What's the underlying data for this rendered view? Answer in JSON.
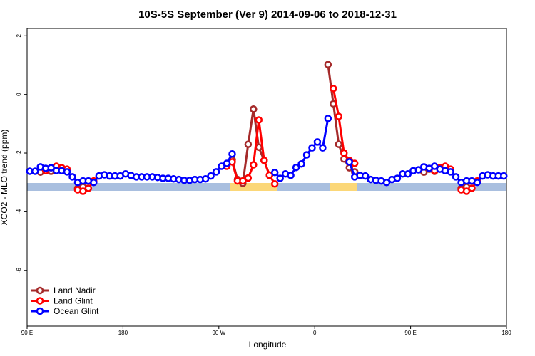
{
  "chart_data": {
    "type": "line",
    "title": "10S-5S September (Ver 9)   2014-09-06 to 2018-12-31",
    "x_label": "Longitude",
    "y_label": "XCO2 - MLO trend (ppm)",
    "x": [
      92.5,
      97.5,
      102.5,
      107.5,
      112.5,
      117.5,
      122.5,
      127.5,
      132.5,
      137.5,
      142.5,
      147.5,
      152.5,
      157.5,
      162.5,
      167.5,
      172.5,
      177.5,
      182.5,
      187.5,
      192.5,
      197.5,
      202.5,
      207.5,
      212.5,
      217.5,
      222.5,
      227.5,
      232.5,
      237.5,
      242.5,
      247.5,
      252.5,
      257.5,
      262.5,
      267.5,
      272.5,
      277.5,
      282.5,
      287.5,
      292.5,
      297.5,
      302.5,
      307.5,
      312.5,
      317.5,
      322.5,
      327.5,
      332.5,
      337.5,
      342.5,
      347.5,
      352.5,
      357.5,
      362.5,
      367.5,
      372.5,
      377.5,
      382.5,
      387.5,
      392.5,
      397.5,
      402.5,
      407.5,
      412.5,
      417.5,
      422.5,
      427.5,
      432.5,
      437.5,
      442.5,
      447.5,
      452.5,
      457.5,
      462.5,
      467.5,
      472.5,
      477.5,
      482.5,
      487.5,
      492.5,
      497.5,
      502.5,
      507.5,
      512.5,
      517.5,
      522.5,
      527.5,
      532.5,
      537.5
    ],
    "xlim": [
      90,
      540
    ],
    "xticks": [
      {
        "value": 90,
        "label": "90 E"
      },
      {
        "value": 180,
        "label": "180"
      },
      {
        "value": 270,
        "label": "90 W"
      },
      {
        "value": 360,
        "label": "0"
      },
      {
        "value": 450,
        "label": "90 E"
      },
      {
        "value": 540,
        "label": "180"
      }
    ],
    "ylim": [
      -7.9,
      2.25
    ],
    "yticks": [
      2,
      0,
      -2,
      -4,
      -6
    ],
    "grid": false,
    "legend": "bottom-left",
    "series": [
      {
        "name": "Land Nadir",
        "color": "#a52a2a",
        "values": [
          null,
          null,
          -2.65,
          -2.55,
          -2.62,
          null,
          null,
          null,
          null,
          -3.2,
          -3.15,
          null,
          null,
          null,
          null,
          null,
          null,
          null,
          null,
          null,
          null,
          null,
          null,
          null,
          null,
          null,
          null,
          null,
          null,
          null,
          null,
          null,
          null,
          null,
          null,
          null,
          null,
          null,
          -2.23,
          -2.9,
          -3.03,
          -1.7,
          -0.5,
          -1.8,
          -2.25,
          -2.76,
          null,
          null,
          null,
          null,
          null,
          null,
          null,
          null,
          null,
          null,
          1.02,
          -0.32,
          -1.7,
          -2.2,
          -2.5,
          -2.64,
          null,
          null,
          null,
          null,
          null,
          null,
          null,
          null,
          null,
          null,
          null,
          null,
          -2.65,
          -2.55,
          -2.62,
          null,
          null,
          null,
          null,
          -3.2,
          -3.15,
          null,
          null,
          null,
          null,
          null,
          null,
          null
        ]
      },
      {
        "name": "Land Glint",
        "color": "#ff0000",
        "values": [
          null,
          null,
          null,
          -2.6,
          -2.5,
          -2.45,
          -2.5,
          -2.55,
          null,
          -3.25,
          -3.3,
          -3.2,
          -2.95,
          null,
          null,
          null,
          null,
          null,
          null,
          null,
          null,
          null,
          null,
          null,
          null,
          null,
          null,
          null,
          null,
          null,
          null,
          null,
          null,
          null,
          null,
          null,
          null,
          -2.45,
          -2.3,
          -2.95,
          -2.95,
          -2.85,
          -2.4,
          -0.87,
          -2.25,
          -2.75,
          -3.05,
          null,
          null,
          null,
          null,
          null,
          null,
          null,
          null,
          null,
          null,
          0.2,
          -0.75,
          -2.0,
          -2.25,
          -2.35,
          null,
          null,
          null,
          null,
          null,
          null,
          null,
          null,
          null,
          null,
          null,
          null,
          null,
          null,
          -2.6,
          -2.5,
          -2.45,
          -2.55,
          null,
          -3.25,
          -3.3,
          -3.2,
          -2.95,
          null,
          null,
          null,
          null,
          null
        ]
      },
      {
        "name": "Ocean Glint",
        "color": "#0000ff",
        "values": [
          -2.62,
          -2.62,
          -2.47,
          -2.52,
          -2.5,
          -2.6,
          -2.6,
          -2.64,
          -2.81,
          -3.0,
          -2.95,
          -2.95,
          -3.0,
          -2.78,
          -2.74,
          -2.78,
          -2.78,
          -2.78,
          -2.71,
          -2.76,
          -2.81,
          -2.81,
          -2.81,
          -2.81,
          -2.83,
          -2.86,
          -2.86,
          -2.88,
          -2.9,
          -2.93,
          -2.93,
          -2.9,
          -2.9,
          -2.88,
          -2.78,
          -2.64,
          -2.45,
          -2.35,
          -2.03,
          null,
          null,
          null,
          null,
          null,
          null,
          null,
          -2.66,
          -2.86,
          -2.71,
          -2.76,
          -2.49,
          -2.37,
          -2.06,
          -1.82,
          -1.62,
          -1.82,
          -0.82,
          null,
          null,
          null,
          -2.3,
          -2.81,
          -2.76,
          -2.78,
          -2.9,
          -2.93,
          -2.95,
          -3.0,
          -2.9,
          -2.86,
          -2.71,
          -2.71,
          -2.6,
          -2.57,
          -2.47,
          -2.52,
          -2.45,
          -2.55,
          -2.6,
          -2.64,
          -2.81,
          -3.0,
          -2.95,
          -2.95,
          -3.0,
          -2.78,
          -2.74,
          -2.78,
          -2.78,
          -2.78
        ]
      }
    ]
  }
}
